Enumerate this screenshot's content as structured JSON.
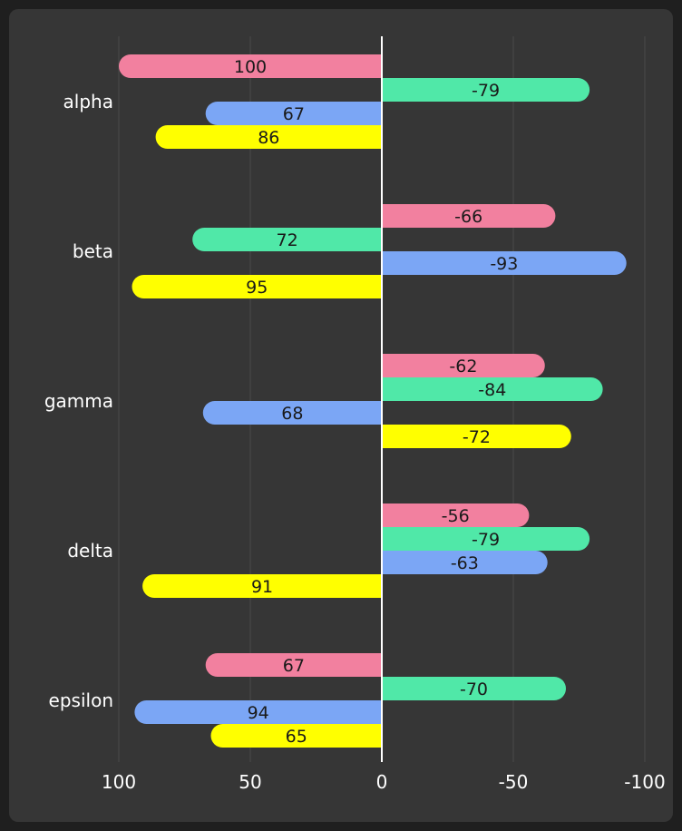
{
  "chart_data": {
    "type": "bar",
    "orientation": "horizontal",
    "x_reversed": true,
    "categories": [
      "alpha",
      "beta",
      "gamma",
      "delta",
      "epsilon"
    ],
    "series": [
      {
        "color": "#f2809f",
        "values": [
          100,
          -66,
          -62,
          -56,
          67
        ]
      },
      {
        "color": "#50e8a8",
        "values": [
          -79,
          72,
          -84,
          -79,
          -70
        ]
      },
      {
        "color": "#7ba6f5",
        "values": [
          67,
          -93,
          68,
          -63,
          94
        ]
      },
      {
        "color": "#ffff00",
        "values": [
          86,
          95,
          -72,
          91,
          65
        ]
      }
    ],
    "xlim": [
      100,
      -100
    ],
    "xticks": [
      "100",
      "50",
      "0",
      "-50",
      "-100"
    ],
    "xtick_values": [
      100,
      50,
      0,
      -50,
      -100
    ],
    "grid": true,
    "legend": "none",
    "background": "#363636",
    "zero_line_color": "#ffffff"
  }
}
